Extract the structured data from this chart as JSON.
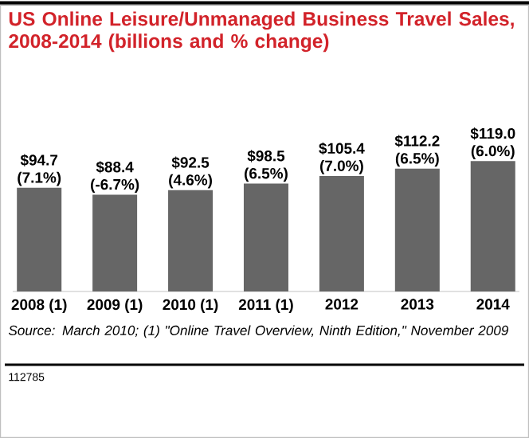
{
  "chart_data": {
    "type": "bar",
    "title": "US Online Leisure/Unmanaged Business Travel Sales, 2008-2014 (billions and % change)",
    "categories": [
      "2008 (1)",
      "2009 (1)",
      "2010 (1)",
      "2011 (1)",
      "2012",
      "2013",
      "2014"
    ],
    "values": [
      94.7,
      88.4,
      92.5,
      98.5,
      105.4,
      112.2,
      119.0
    ],
    "value_labels": [
      "$94.7 (7.1%)",
      "$88.4 (-6.7%)",
      "$92.5 (4.6%)",
      "$98.5 (6.5%)",
      "$105.4 (7.0%)",
      "$112.2 (6.5%)",
      "$119.0 (6.0%)"
    ],
    "color": "#666666",
    "annotations": [
      "Source: March 2010; (1) \"Online Travel Overview, Ninth Edition,\" November 2009",
      "112785"
    ]
  }
}
